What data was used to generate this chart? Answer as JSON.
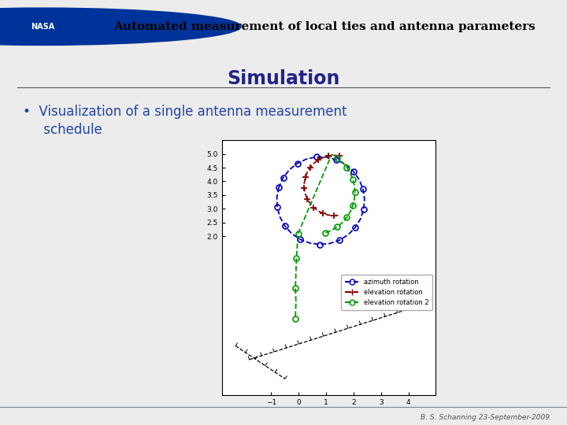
{
  "title": "Simulation",
  "bullet_text": "•  Visualization of a single antenna measurement\n     schedule",
  "header_text": "Automated measurement of local ties and antenna parameters",
  "footer_text": "B. S. Schanning 23-September-2009",
  "legend_labels": [
    "azimuth rotation",
    "elevation rotation",
    "elevation rotation 2"
  ],
  "az_color": "#0000bb",
  "el1_color": "#880000",
  "el2_color": "#009900",
  "title_color": "#222288",
  "bullet_color": "#2244aa",
  "header_bg": "#c8d4e0",
  "main_bg": "#ffffff",
  "footer_bg": "#e4e4e4",
  "sep_color": "#667788",
  "fig_bg": "#ececec"
}
